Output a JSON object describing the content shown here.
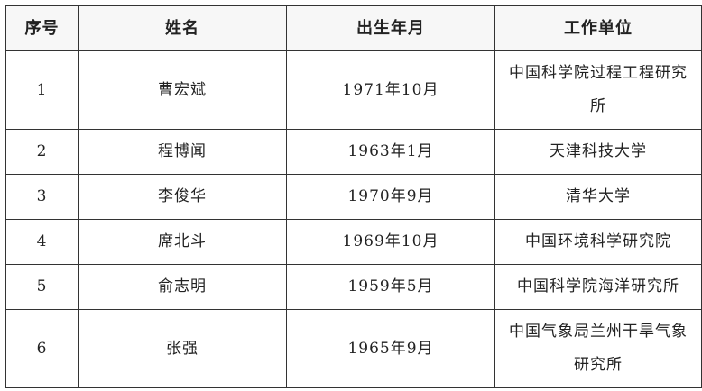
{
  "table": {
    "headers": [
      "序号",
      "姓名",
      "出生年月",
      "工作单位"
    ],
    "rows": [
      [
        "1",
        "曹宏斌",
        "1971年10月",
        "中国科学院过程工程研究所"
      ],
      [
        "2",
        "程博闻",
        "1963年1月",
        "天津科技大学"
      ],
      [
        "3",
        "李俊华",
        "1970年9月",
        "清华大学"
      ],
      [
        "4",
        "席北斗",
        "1969年10月",
        "中国环境科学研究院"
      ],
      [
        "5",
        "俞志明",
        "1959年5月",
        "中国科学院海洋研究所"
      ],
      [
        "6",
        "张强",
        "1965年9月",
        "中国气象局兰州干旱气象研究所"
      ]
    ]
  }
}
